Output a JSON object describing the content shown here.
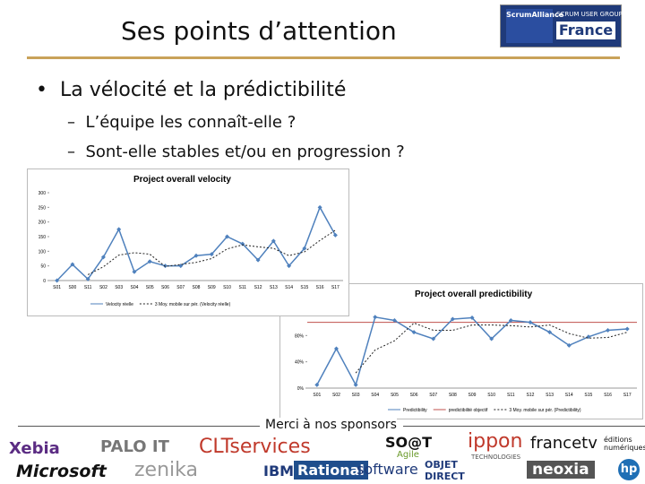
{
  "header": {
    "title": "Ses points d’attention",
    "logo": {
      "brand": "ScrumAlliance",
      "group": "SCRUM USER GROUP",
      "country": "France"
    }
  },
  "bullets": [
    {
      "text": "La vélocité et la prédictibilité",
      "sub": [
        "L’équipe les connaît-elle ?",
        "Sont-elle stables et/ou en progression ?"
      ]
    }
  ],
  "velocity_chart": {
    "type": "line",
    "title": "Project overall velocity",
    "categories": [
      "S01",
      "S00",
      "S11",
      "S02",
      "S03",
      "S04",
      "S05",
      "S06",
      "S07",
      "S08",
      "S09",
      "S10",
      "S11",
      "S12",
      "S13",
      "S14",
      "S15",
      "S16",
      "S17"
    ],
    "series": [
      {
        "name": "Velocity réelle",
        "color": "#4f81bd",
        "style": "solid",
        "marker": true,
        "values": [
          0,
          55,
          5,
          80,
          175,
          30,
          65,
          50,
          50,
          85,
          90,
          150,
          125,
          70,
          135,
          50,
          110,
          250,
          155
        ]
      },
      {
        "name": "3 Moy. mobile sur pér. (Velocity réelle)",
        "color": "#222222",
        "style": "dashed",
        "marker": false,
        "values": [
          null,
          null,
          20,
          47,
          87,
          95,
          90,
          48,
          55,
          62,
          75,
          108,
          122,
          115,
          110,
          85,
          98,
          137,
          172
        ]
      }
    ],
    "ylim": [
      0,
      300
    ],
    "yticks": [
      0,
      50,
      100,
      150,
      200,
      250,
      300
    ],
    "grid": false
  },
  "predictability_chart": {
    "type": "line",
    "title": "Project overall predictibility",
    "categories": [
      "S01",
      "S02",
      "S03",
      "S04",
      "S05",
      "S06",
      "S07",
      "S08",
      "S09",
      "S10",
      "S11",
      "S12",
      "S13",
      "S14",
      "S15",
      "S16",
      "S17"
    ],
    "series": [
      {
        "name": "Predictibility",
        "color": "#4f81bd",
        "style": "solid",
        "marker": true,
        "values": [
          5,
          60,
          5,
          108,
          103,
          85,
          75,
          105,
          107,
          75,
          103,
          100,
          85,
          65,
          78,
          88,
          90
        ]
      },
      {
        "name": "3 Moy. mobile sur pér. (Predictibility)",
        "color": "#222222",
        "style": "dashed",
        "marker": false,
        "values": [
          null,
          null,
          23,
          58,
          72,
          99,
          88,
          88,
          96,
          96,
          95,
          93,
          96,
          83,
          76,
          77,
          85
        ]
      }
    ],
    "target": {
      "name": "predictibilité objectif",
      "value": 100,
      "color": "#c0504d"
    },
    "ylim": [
      0,
      120
    ],
    "yticks": [
      {
        "value": 0,
        "label": "0%"
      },
      {
        "value": 40,
        "label": "40%"
      },
      {
        "value": 80,
        "label": "80%"
      },
      {
        "value": 120,
        "label": "120%"
      }
    ],
    "grid": false
  },
  "footer": {
    "caption": "Merci à nos sponsors",
    "sponsors": [
      "Xebia",
      "Microsoft",
      "PALO IT",
      "zenika",
      "CLTservices",
      "IBM",
      "Rational",
      "software",
      "SO@T",
      "Agile",
      "OBJET DIRECT",
      "ippon",
      "TECHNOLOGIES",
      "francetv",
      "éditions numériques",
      "neoxia",
      "hp"
    ]
  }
}
